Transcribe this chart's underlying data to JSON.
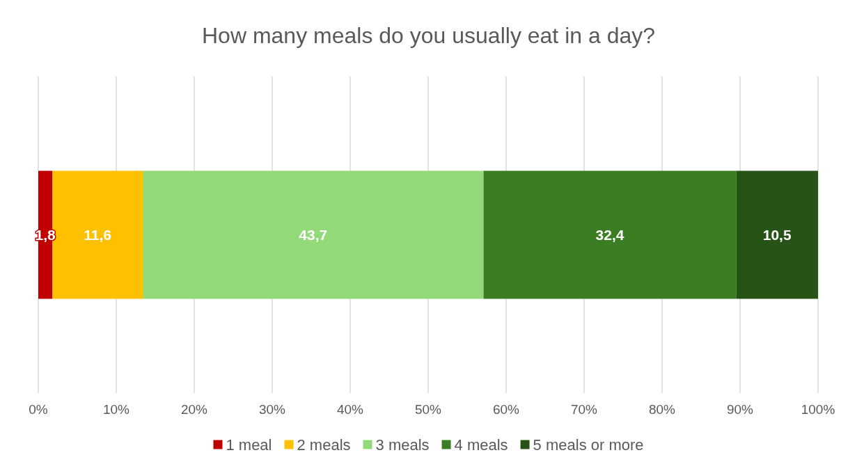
{
  "chart_data": {
    "type": "bar",
    "orientation": "horizontal",
    "stacked": true,
    "title": "How many meals do you usually eat in a day?",
    "categories": [
      null
    ],
    "series": [
      {
        "name": "1 meal",
        "color": "#c00000",
        "values": [
          1.8
        ],
        "value_labels": [
          "1,8"
        ]
      },
      {
        "name": "2 meals",
        "color": "#ffc000",
        "values": [
          11.6
        ],
        "value_labels": [
          "11,6"
        ]
      },
      {
        "name": "3 meals",
        "color": "#92da78",
        "values": [
          43.7
        ],
        "value_labels": [
          "43,7"
        ]
      },
      {
        "name": "4 meals",
        "color": "#3b7d23",
        "values": [
          32.4
        ],
        "value_labels": [
          "32,4"
        ]
      },
      {
        "name": "5 meals or more",
        "color": "#275317",
        "values": [
          10.5
        ],
        "value_labels": [
          "10,5"
        ]
      }
    ],
    "xlim": [
      0,
      100
    ],
    "xticks": [
      {
        "value": 0,
        "label": "0%"
      },
      {
        "value": 10,
        "label": "10%"
      },
      {
        "value": 20,
        "label": "20%"
      },
      {
        "value": 30,
        "label": "30%"
      },
      {
        "value": 40,
        "label": "40%"
      },
      {
        "value": 50,
        "label": "50%"
      },
      {
        "value": 60,
        "label": "60%"
      },
      {
        "value": 70,
        "label": "70%"
      },
      {
        "value": 80,
        "label": "80%"
      },
      {
        "value": 90,
        "label": "90%"
      },
      {
        "value": 100,
        "label": "100%"
      }
    ],
    "grid": "x",
    "legend": "bottom"
  }
}
